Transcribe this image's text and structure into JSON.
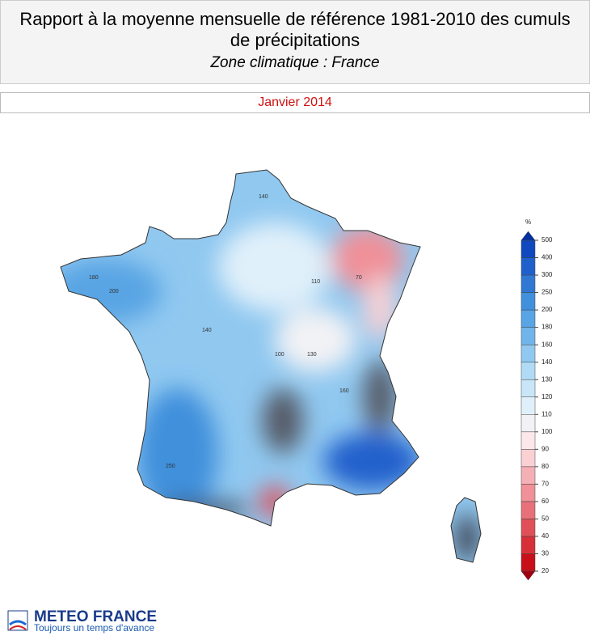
{
  "header": {
    "title": "Rapport à la moyenne mensuelle de référence 1981-2010 des cumuls de précipitations",
    "subtitle": "Zone climatique : France",
    "period": "Janvier 2014"
  },
  "legend": {
    "unit": "%",
    "ticks": [
      20,
      30,
      40,
      50,
      60,
      70,
      80,
      90,
      100,
      110,
      120,
      130,
      140,
      160,
      180,
      200,
      250,
      300,
      400,
      500
    ],
    "colors": [
      "#c8101a",
      "#d83038",
      "#e05058",
      "#e87078",
      "#f09098",
      "#f5b0b5",
      "#fad0d3",
      "#fce8ea",
      "#f2f2f5",
      "#e0f0fa",
      "#c8e6f8",
      "#b0daf5",
      "#90c8f0",
      "#70b4ea",
      "#58a4e4",
      "#4090dc",
      "#3078d4",
      "#2060cc",
      "#1048c0"
    ],
    "under_color": "#a00010",
    "over_color": "#0030a0"
  },
  "map": {
    "labels": [
      "140",
      "180",
      "200",
      "140",
      "110",
      "100",
      "70",
      "250",
      "130",
      "160"
    ]
  },
  "logo": {
    "name": "METEO FRANCE",
    "tagline": "Toujours un temps d'avance"
  }
}
